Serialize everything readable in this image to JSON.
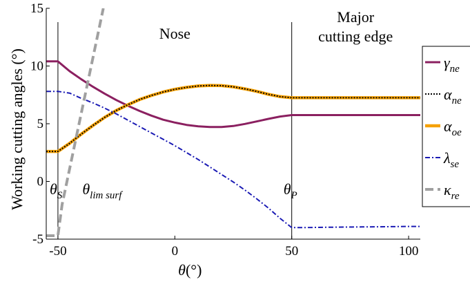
{
  "chart_data": {
    "type": "line",
    "xlabel": "θ(°)",
    "ylabel": "Working cutting angles (°)",
    "xlim": [
      -55,
      105
    ],
    "ylim": [
      -5,
      15
    ],
    "xticks": [
      -50,
      0,
      50,
      100
    ],
    "yticks": [
      -5,
      0,
      5,
      10,
      15
    ],
    "grid": false,
    "legend_position": "right",
    "regions": [
      {
        "label": "Nose",
        "x": 0
      },
      {
        "label": "Major",
        "label2": "cutting edge",
        "x": 77
      }
    ],
    "vlines": [
      {
        "x": -50,
        "label": "θS",
        "sym": "θ",
        "sub": "S"
      },
      {
        "x": -36,
        "label": "θlim surf",
        "sym": "θ",
        "sub": "lim surf"
      },
      {
        "x": 50,
        "label": "θP",
        "sym": "θ",
        "sub": "P"
      }
    ],
    "series": [
      {
        "name": "γne",
        "sym": "γ",
        "sub": "ne",
        "color": "#8b2060",
        "dash": "",
        "width": 3,
        "x": [
          -55,
          -50,
          -45,
          -40,
          -35,
          -30,
          -25,
          -20,
          -15,
          -10,
          -5,
          0,
          5,
          10,
          15,
          20,
          25,
          30,
          35,
          40,
          45,
          50,
          55,
          60,
          70,
          80,
          90,
          100,
          105
        ],
        "y": [
          10.4,
          10.4,
          9.55,
          8.85,
          8.2,
          7.6,
          7.05,
          6.55,
          6.1,
          5.7,
          5.35,
          5.1,
          4.9,
          4.78,
          4.72,
          4.72,
          4.8,
          4.98,
          5.2,
          5.42,
          5.62,
          5.75,
          5.75,
          5.75,
          5.75,
          5.75,
          5.75,
          5.75,
          5.75
        ]
      },
      {
        "name": "αoe",
        "sym": "α",
        "sub": "oe",
        "color": "#f5a000",
        "dash": "",
        "width": 4.5,
        "x": [
          -55,
          -50,
          -45,
          -40,
          -35,
          -30,
          -25,
          -20,
          -15,
          -10,
          -5,
          0,
          5,
          10,
          15,
          20,
          25,
          30,
          35,
          40,
          45,
          50,
          55,
          60,
          70,
          80,
          90,
          100,
          105
        ],
        "y": [
          2.6,
          2.6,
          3.3,
          4.1,
          4.85,
          5.55,
          6.15,
          6.65,
          7.1,
          7.45,
          7.75,
          7.98,
          8.15,
          8.27,
          8.32,
          8.3,
          8.2,
          8.02,
          7.8,
          7.55,
          7.35,
          7.25,
          7.25,
          7.25,
          7.25,
          7.25,
          7.25,
          7.25,
          7.25
        ]
      },
      {
        "name": "αne",
        "sym": "α",
        "sub": "ne",
        "color": "#000000",
        "dash": "2,2",
        "width": 2,
        "x": [
          -55,
          -50,
          -45,
          -40,
          -35,
          -30,
          -25,
          -20,
          -15,
          -10,
          -5,
          0,
          5,
          10,
          15,
          20,
          25,
          30,
          35,
          40,
          45,
          50,
          55,
          60,
          70,
          80,
          90,
          100,
          105
        ],
        "y": [
          2.6,
          2.6,
          3.3,
          4.1,
          4.85,
          5.55,
          6.15,
          6.65,
          7.1,
          7.45,
          7.75,
          7.98,
          8.15,
          8.27,
          8.32,
          8.3,
          8.2,
          8.02,
          7.8,
          7.55,
          7.35,
          7.25,
          7.25,
          7.25,
          7.25,
          7.25,
          7.25,
          7.25,
          7.25
        ]
      },
      {
        "name": "λse",
        "sym": "λ",
        "sub": "se",
        "color": "#1a1ab4",
        "dash": "7,3,2,3",
        "width": 2,
        "x": [
          -55,
          -50,
          -45,
          -40,
          -35,
          -30,
          -25,
          -20,
          -15,
          -10,
          -5,
          0,
          5,
          10,
          15,
          20,
          25,
          30,
          35,
          40,
          45,
          50,
          55,
          60,
          70,
          80,
          90,
          100,
          105
        ],
        "y": [
          7.8,
          7.8,
          7.65,
          7.2,
          6.8,
          6.35,
          5.85,
          5.3,
          4.75,
          4.2,
          3.65,
          3.1,
          2.5,
          1.9,
          1.25,
          0.6,
          -0.05,
          -0.75,
          -1.5,
          -2.3,
          -3.2,
          -4.0,
          -4.0,
          -3.98,
          -3.96,
          -3.94,
          -3.92,
          -3.9,
          -3.9
        ]
      },
      {
        "name": "κre",
        "sym": "κ",
        "sub": "re",
        "color": "#a0a0a0",
        "dash": "12,6",
        "width": 4,
        "x": [
          -55,
          -50,
          -48.2,
          -30.6
        ],
        "y": [
          -4.7,
          -4.7,
          -2.0,
          15
        ]
      }
    ]
  }
}
